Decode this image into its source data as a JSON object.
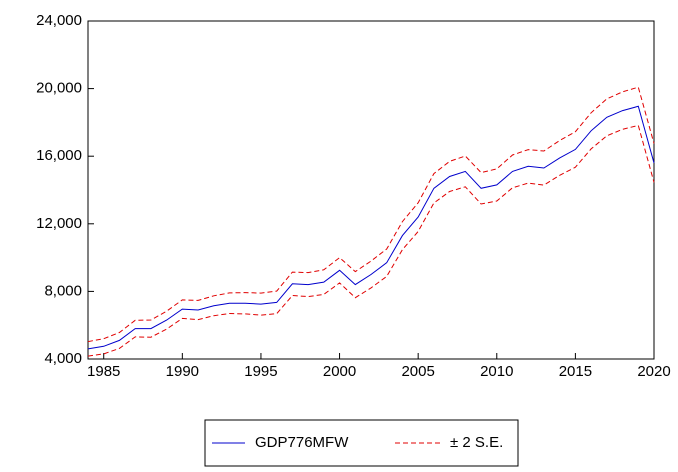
{
  "chart_data": {
    "type": "line",
    "x": [
      1984,
      1985,
      1986,
      1987,
      1988,
      1989,
      1990,
      1991,
      1992,
      1993,
      1994,
      1995,
      1996,
      1997,
      1998,
      1999,
      2000,
      2001,
      2002,
      2003,
      2004,
      2005,
      2006,
      2007,
      2008,
      2009,
      2010,
      2011,
      2012,
      2013,
      2014,
      2015,
      2016,
      2017,
      2018,
      2019,
      2020
    ],
    "series": [
      {
        "name": "GDP776MFW",
        "color": "#0000cc",
        "values": [
          4600,
          4750,
          5100,
          5800,
          5800,
          6300,
          6950,
          6900,
          7150,
          7300,
          7300,
          7250,
          7350,
          8450,
          8400,
          8550,
          9250,
          8400,
          9000,
          9700,
          11300,
          12400,
          14100,
          14800,
          15100,
          14100,
          14300,
          15100,
          15400,
          15300,
          15900,
          16400,
          17500,
          18300,
          18700,
          18950,
          15600
        ]
      }
    ],
    "band": {
      "name": "± 2 S.E.",
      "color": "#e00000",
      "upper": [
        5030,
        5200,
        5570,
        6290,
        6310,
        6830,
        7500,
        7470,
        7740,
        7910,
        7930,
        7900,
        8020,
        9140,
        9110,
        9280,
        10000,
        9170,
        9790,
        10510,
        12130,
        13250,
        14970,
        15690,
        16010,
        15030,
        15250,
        16070,
        16390,
        16310,
        16930,
        17450,
        18570,
        19390,
        19810,
        20080,
        16750
      ],
      "lower": [
        4170,
        4300,
        4630,
        5310,
        5290,
        5770,
        6400,
        6330,
        6560,
        6690,
        6670,
        6600,
        6680,
        7760,
        7690,
        7820,
        8500,
        7630,
        8210,
        8890,
        10470,
        11550,
        13230,
        13910,
        14190,
        13170,
        13350,
        14130,
        14410,
        14290,
        14870,
        15350,
        16430,
        17210,
        17590,
        17820,
        14450
      ]
    },
    "xlim": [
      1984,
      2020
    ],
    "xticks": [
      1985,
      1990,
      1995,
      2000,
      2005,
      2010,
      2015,
      2020
    ],
    "ylim": [
      4000,
      24000
    ],
    "yticks": [
      {
        "value": 4000,
        "label": "4,000"
      },
      {
        "value": 8000,
        "label": "8,000"
      },
      {
        "value": 12000,
        "label": "12,000"
      },
      {
        "value": 16000,
        "label": "16,000"
      },
      {
        "value": 20000,
        "label": "20,000"
      },
      {
        "value": 24000,
        "label": "24,000"
      }
    ],
    "grid": false,
    "legend": "bottom"
  }
}
